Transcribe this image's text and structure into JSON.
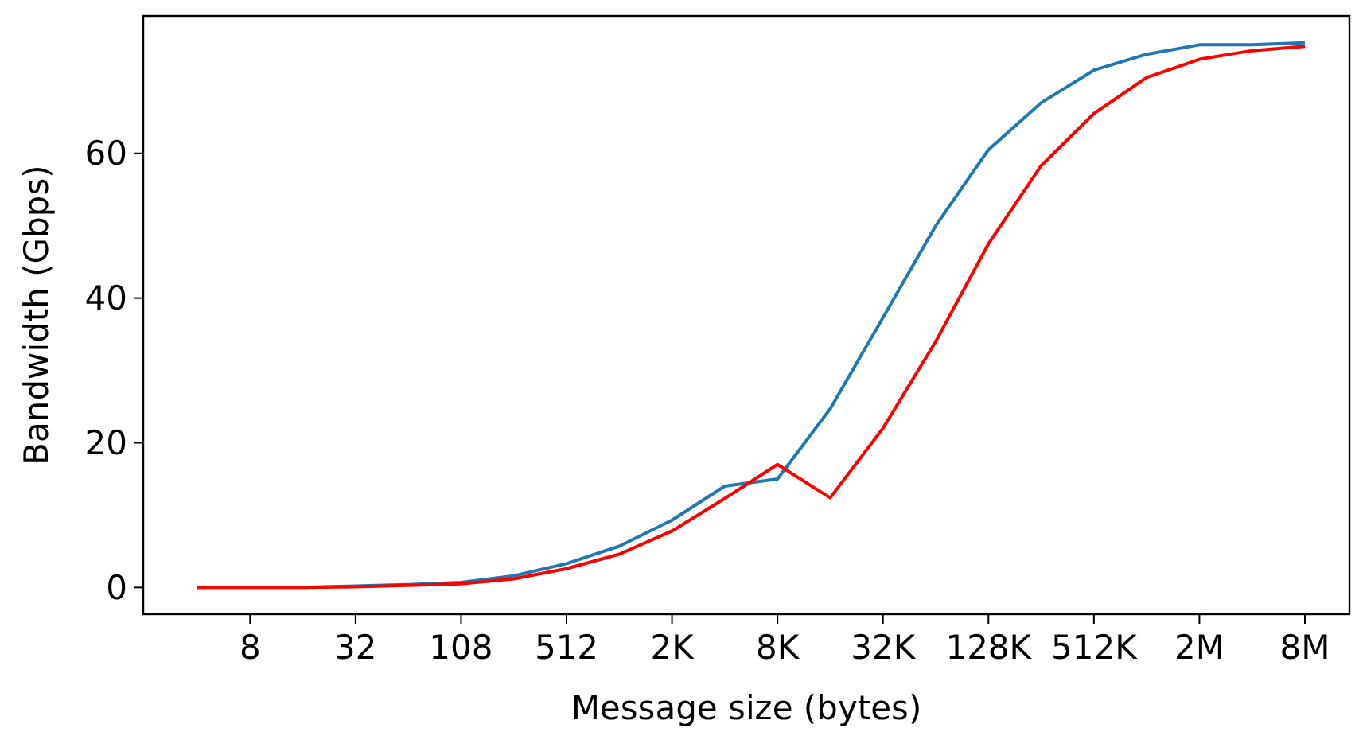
{
  "chart_data": {
    "type": "line",
    "xlabel": "Message size (bytes)",
    "ylabel": "Bandwidth (Gbps)",
    "categories": [
      null,
      "8",
      null,
      "32",
      null,
      "108",
      null,
      "512",
      null,
      "2K",
      null,
      "8K",
      null,
      "32K",
      null,
      "128K",
      null,
      "512K",
      null,
      "2M",
      null,
      "8M"
    ],
    "series": [
      {
        "color": "#1f77b4",
        "values": [
          0,
          0,
          0,
          0.2,
          0.4,
          0.7,
          1.6,
          3.3,
          5.7,
          9.3,
          14,
          15,
          24.7,
          37.3,
          50,
          60.5,
          67,
          71.5,
          73.7,
          75,
          75,
          75.3
        ]
      },
      {
        "color": "#ff0000",
        "values": [
          0,
          0,
          0,
          0.1,
          0.3,
          0.5,
          1.2,
          2.6,
          4.6,
          7.8,
          12.3,
          17,
          12.4,
          22,
          34,
          47.5,
          58.3,
          65.5,
          70.5,
          73,
          74.2,
          74.8
        ]
      }
    ],
    "ylim": [
      -3.7,
      79
    ],
    "yticks": [
      0,
      20,
      40,
      60
    ],
    "grid": false,
    "marker": "none",
    "line_style": "solid"
  }
}
